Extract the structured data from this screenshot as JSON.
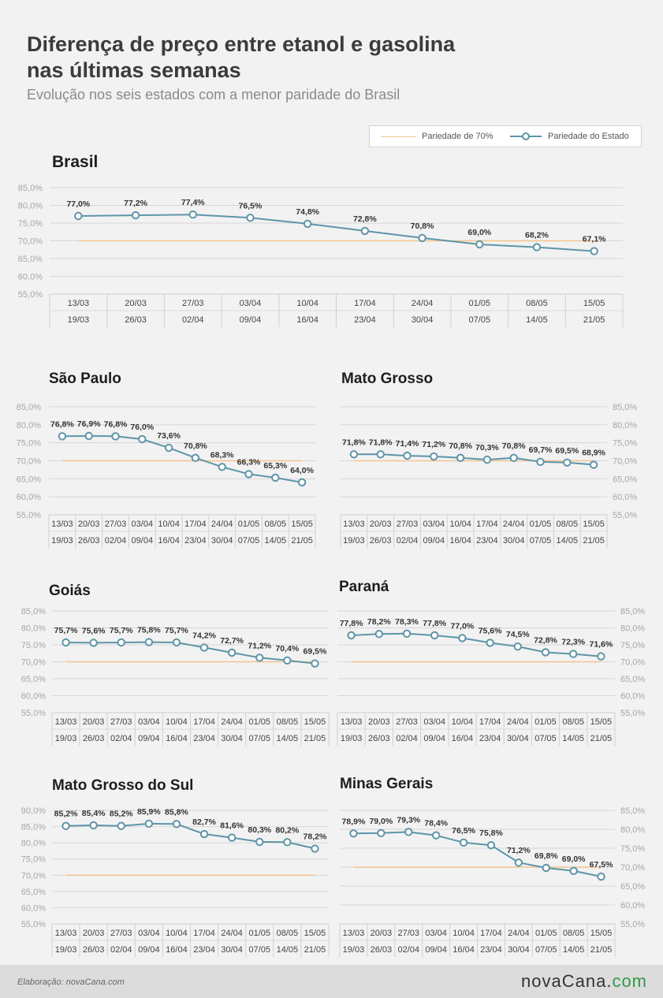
{
  "header": {
    "title_line1": "Diferença de preço entre etanol e gasolina",
    "title_line2": "nas últimas semanas",
    "subtitle": "Evolução nos seis estados com a menor paridade do Brasil"
  },
  "legend": {
    "reference": "Pariedade de 70%",
    "state": "Pariedade do Estado"
  },
  "colors": {
    "state_line": "#5e95a8",
    "reference_line": "#f2c48f",
    "grid": "#d6d6d6",
    "background": "#f2f2f2",
    "logo_accent": "#2f9a45"
  },
  "chart_data": [
    {
      "type": "line",
      "title": "Brasil",
      "categories": [
        "13/03 19/03",
        "20/03 26/03",
        "27/03 02/04",
        "03/04 09/04",
        "10/04 16/04",
        "17/04 23/04",
        "24/04 30/04",
        "01/05 07/05",
        "08/05 14/05",
        "15/05 21/05"
      ],
      "week_start": [
        "13/03",
        "20/03",
        "27/03",
        "03/04",
        "10/04",
        "17/04",
        "24/04",
        "01/05",
        "08/05",
        "15/05"
      ],
      "week_end": [
        "19/03",
        "26/03",
        "02/04",
        "09/04",
        "16/04",
        "23/04",
        "30/04",
        "07/05",
        "14/05",
        "21/05"
      ],
      "values": [
        77.0,
        77.2,
        77.4,
        76.5,
        74.8,
        72.8,
        70.8,
        69.0,
        68.2,
        67.1
      ],
      "labels": [
        "77,0%",
        "77,2%",
        "77,4%",
        "76,5%",
        "74,8%",
        "72,8%",
        "70,8%",
        "69,0%",
        "68,2%",
        "67,1%"
      ],
      "reference": 70,
      "ylim": [
        55,
        85
      ],
      "yticks": [
        "55,0%",
        "60,0%",
        "65,0%",
        "70,0%",
        "75,0%",
        "80,0%",
        "85,0%"
      ],
      "axis_side": "left",
      "grid": true
    },
    {
      "type": "line",
      "title": "São Paulo",
      "week_start": [
        "13/03",
        "20/03",
        "27/03",
        "03/04",
        "10/04",
        "17/04",
        "24/04",
        "01/05",
        "08/05",
        "15/05"
      ],
      "week_end": [
        "19/03",
        "26/03",
        "02/04",
        "09/04",
        "16/04",
        "23/04",
        "30/04",
        "07/05",
        "14/05",
        "21/05"
      ],
      "values": [
        76.8,
        76.9,
        76.8,
        76.0,
        73.6,
        70.8,
        68.3,
        66.3,
        65.3,
        64.0
      ],
      "labels": [
        "76,8%",
        "76,9%",
        "76,8%",
        "76,0%",
        "73,6%",
        "70,8%",
        "68,3%",
        "66,3%",
        "65,3%",
        "64,0%"
      ],
      "reference": 70,
      "ylim": [
        55,
        85
      ],
      "yticks": [
        "55,0%",
        "60,0%",
        "65,0%",
        "70,0%",
        "75,0%",
        "80,0%",
        "85,0%"
      ],
      "axis_side": "left",
      "grid": true
    },
    {
      "type": "line",
      "title": "Mato Grosso",
      "week_start": [
        "13/03",
        "20/03",
        "27/03",
        "03/04",
        "10/04",
        "17/04",
        "24/04",
        "01/05",
        "08/05",
        "15/05"
      ],
      "week_end": [
        "19/03",
        "26/03",
        "02/04",
        "09/04",
        "16/04",
        "23/04",
        "30/04",
        "07/05",
        "14/05",
        "21/05"
      ],
      "values": [
        71.8,
        71.8,
        71.4,
        71.2,
        70.8,
        70.3,
        70.8,
        69.7,
        69.5,
        68.9
      ],
      "labels": [
        "71,8%",
        "71,8%",
        "71,4%",
        "71,2%",
        "70,8%",
        "70,3%",
        "70,8%",
        "69,7%",
        "69,5%",
        "68,9%"
      ],
      "reference": 70,
      "ylim": [
        55,
        85
      ],
      "yticks": [
        "55,0%",
        "60,0%",
        "65,0%",
        "70,0%",
        "75,0%",
        "80,0%",
        "85,0%"
      ],
      "axis_side": "right",
      "grid": true
    },
    {
      "type": "line",
      "title": "Goiás",
      "week_start": [
        "13/03",
        "20/03",
        "27/03",
        "03/04",
        "10/04",
        "17/04",
        "24/04",
        "01/05",
        "08/05",
        "15/05"
      ],
      "week_end": [
        "19/03",
        "26/03",
        "02/04",
        "09/04",
        "16/04",
        "23/04",
        "30/04",
        "07/05",
        "14/05",
        "21/05"
      ],
      "values": [
        75.7,
        75.6,
        75.7,
        75.8,
        75.7,
        74.2,
        72.7,
        71.2,
        70.4,
        69.5
      ],
      "labels": [
        "75,7%",
        "75,6%",
        "75,7%",
        "75,8%",
        "75,7%",
        "74,2%",
        "72,7%",
        "71,2%",
        "70,4%",
        "69,5%"
      ],
      "reference": 70,
      "ylim": [
        55,
        85
      ],
      "yticks": [
        "55,0%",
        "60,0%",
        "65,0%",
        "70,0%",
        "75,0%",
        "80,0%",
        "85,0%"
      ],
      "axis_side": "left",
      "grid": true
    },
    {
      "type": "line",
      "title": "Paraná",
      "week_start": [
        "13/03",
        "20/03",
        "27/03",
        "03/04",
        "10/04",
        "17/04",
        "24/04",
        "01/05",
        "08/05",
        "15/05"
      ],
      "week_end": [
        "19/03",
        "26/03",
        "02/04",
        "09/04",
        "16/04",
        "23/04",
        "30/04",
        "07/05",
        "14/05",
        "21/05"
      ],
      "values": [
        77.8,
        78.2,
        78.3,
        77.8,
        77.0,
        75.6,
        74.5,
        72.8,
        72.3,
        71.6
      ],
      "labels": [
        "77,8%",
        "78,2%",
        "78,3%",
        "77,8%",
        "77,0%",
        "75,6%",
        "74,5%",
        "72,8%",
        "72,3%",
        "71,6%"
      ],
      "reference": 70,
      "ylim": [
        55,
        85
      ],
      "yticks": [
        "55,0%",
        "60,0%",
        "65,0%",
        "70,0%",
        "75,0%",
        "80,0%",
        "85,0%"
      ],
      "axis_side": "right",
      "grid": true
    },
    {
      "type": "line",
      "title": "Mato Grosso do Sul",
      "week_start": [
        "13/03",
        "20/03",
        "27/03",
        "03/04",
        "10/04",
        "17/04",
        "24/04",
        "01/05",
        "08/05",
        "15/05"
      ],
      "week_end": [
        "19/03",
        "26/03",
        "02/04",
        "09/04",
        "16/04",
        "23/04",
        "30/04",
        "07/05",
        "14/05",
        "21/05"
      ],
      "values": [
        85.2,
        85.4,
        85.2,
        85.9,
        85.8,
        82.7,
        81.6,
        80.3,
        80.2,
        78.2
      ],
      "labels": [
        "85,2%",
        "85,4%",
        "85,2%",
        "85,9%",
        "85,8%",
        "82,7%",
        "81,6%",
        "80,3%",
        "80,2%",
        "78,2%"
      ],
      "reference": 70,
      "ylim": [
        55,
        90
      ],
      "yticks": [
        "55,0%",
        "60,0%",
        "65,0%",
        "70,0%",
        "75,0%",
        "80,0%",
        "85,0%",
        "90,0%"
      ],
      "axis_side": "left",
      "grid": true
    },
    {
      "type": "line",
      "title": "Minas Gerais",
      "week_start": [
        "13/03",
        "20/03",
        "27/03",
        "03/04",
        "10/04",
        "17/04",
        "24/04",
        "01/05",
        "08/05",
        "15/05"
      ],
      "week_end": [
        "19/03",
        "26/03",
        "02/04",
        "09/04",
        "16/04",
        "23/04",
        "30/04",
        "07/05",
        "14/05",
        "21/05"
      ],
      "values": [
        78.9,
        79.0,
        79.3,
        78.4,
        76.5,
        75.8,
        71.2,
        69.8,
        69.0,
        67.5
      ],
      "labels": [
        "78,9%",
        "79,0%",
        "79,3%",
        "78,4%",
        "76,5%",
        "75,8%",
        "71,2%",
        "69,8%",
        "69,0%",
        "67,5%"
      ],
      "reference": 70,
      "ylim": [
        55,
        85
      ],
      "yticks": [
        "55,0%",
        "60,0%",
        "65,0%",
        "70,0%",
        "75,0%",
        "80,0%",
        "85,0%"
      ],
      "axis_side": "right",
      "grid": true
    }
  ],
  "footer": {
    "credit": "Elaboração: novaCana.com",
    "logo_main": "novaCana.",
    "logo_suffix": "com"
  }
}
